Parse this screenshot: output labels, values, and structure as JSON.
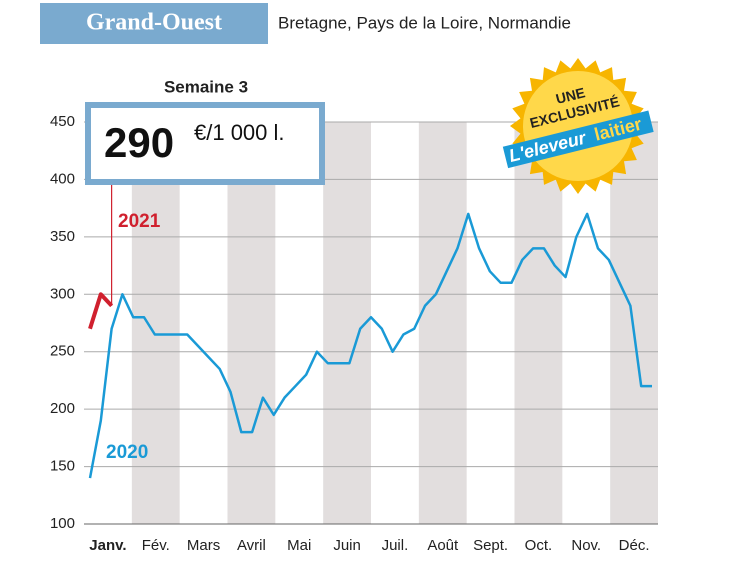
{
  "header": {
    "title": "Grand-Ouest",
    "subtitle": "Bretagne, Pays de la Loire, Normandie"
  },
  "callout": {
    "week": "Semaine 3",
    "value": 290,
    "unit": "€/1 000 l."
  },
  "badge": {
    "line1": "UNE",
    "line2": "EXCLUSIVITÉ",
    "brand1": "L'eleveur",
    "brand2": "laitier"
  },
  "chart_data": {
    "type": "line",
    "months": [
      "Janv.",
      "Fév.",
      "Mars",
      "Avril",
      "Mai",
      "Juin",
      "Juil.",
      "Août",
      "Sept.",
      "Oct.",
      "Nov.",
      "Déc."
    ],
    "shaded_months": [
      false,
      true,
      false,
      true,
      false,
      true,
      false,
      true,
      false,
      true,
      false,
      true
    ],
    "ylim": [
      100,
      450
    ],
    "yticks": [
      100,
      150,
      200,
      250,
      300,
      350,
      400,
      450
    ],
    "grid": true,
    "series": [
      {
        "name": "2020",
        "color": "#1a9ad6",
        "values": [
          140,
          190,
          270,
          300,
          280,
          280,
          265,
          265,
          265,
          265,
          255,
          245,
          235,
          215,
          180,
          180,
          210,
          195,
          210,
          220,
          230,
          250,
          240,
          240,
          240,
          270,
          280,
          270,
          250,
          265,
          270,
          290,
          300,
          320,
          340,
          370,
          340,
          320,
          310,
          310,
          330,
          340,
          340,
          325,
          315,
          350,
          370,
          340,
          330,
          310,
          290,
          220,
          220
        ]
      },
      {
        "name": "2021",
        "color": "#d0202e",
        "values": [
          270,
          300,
          290
        ]
      }
    ]
  }
}
